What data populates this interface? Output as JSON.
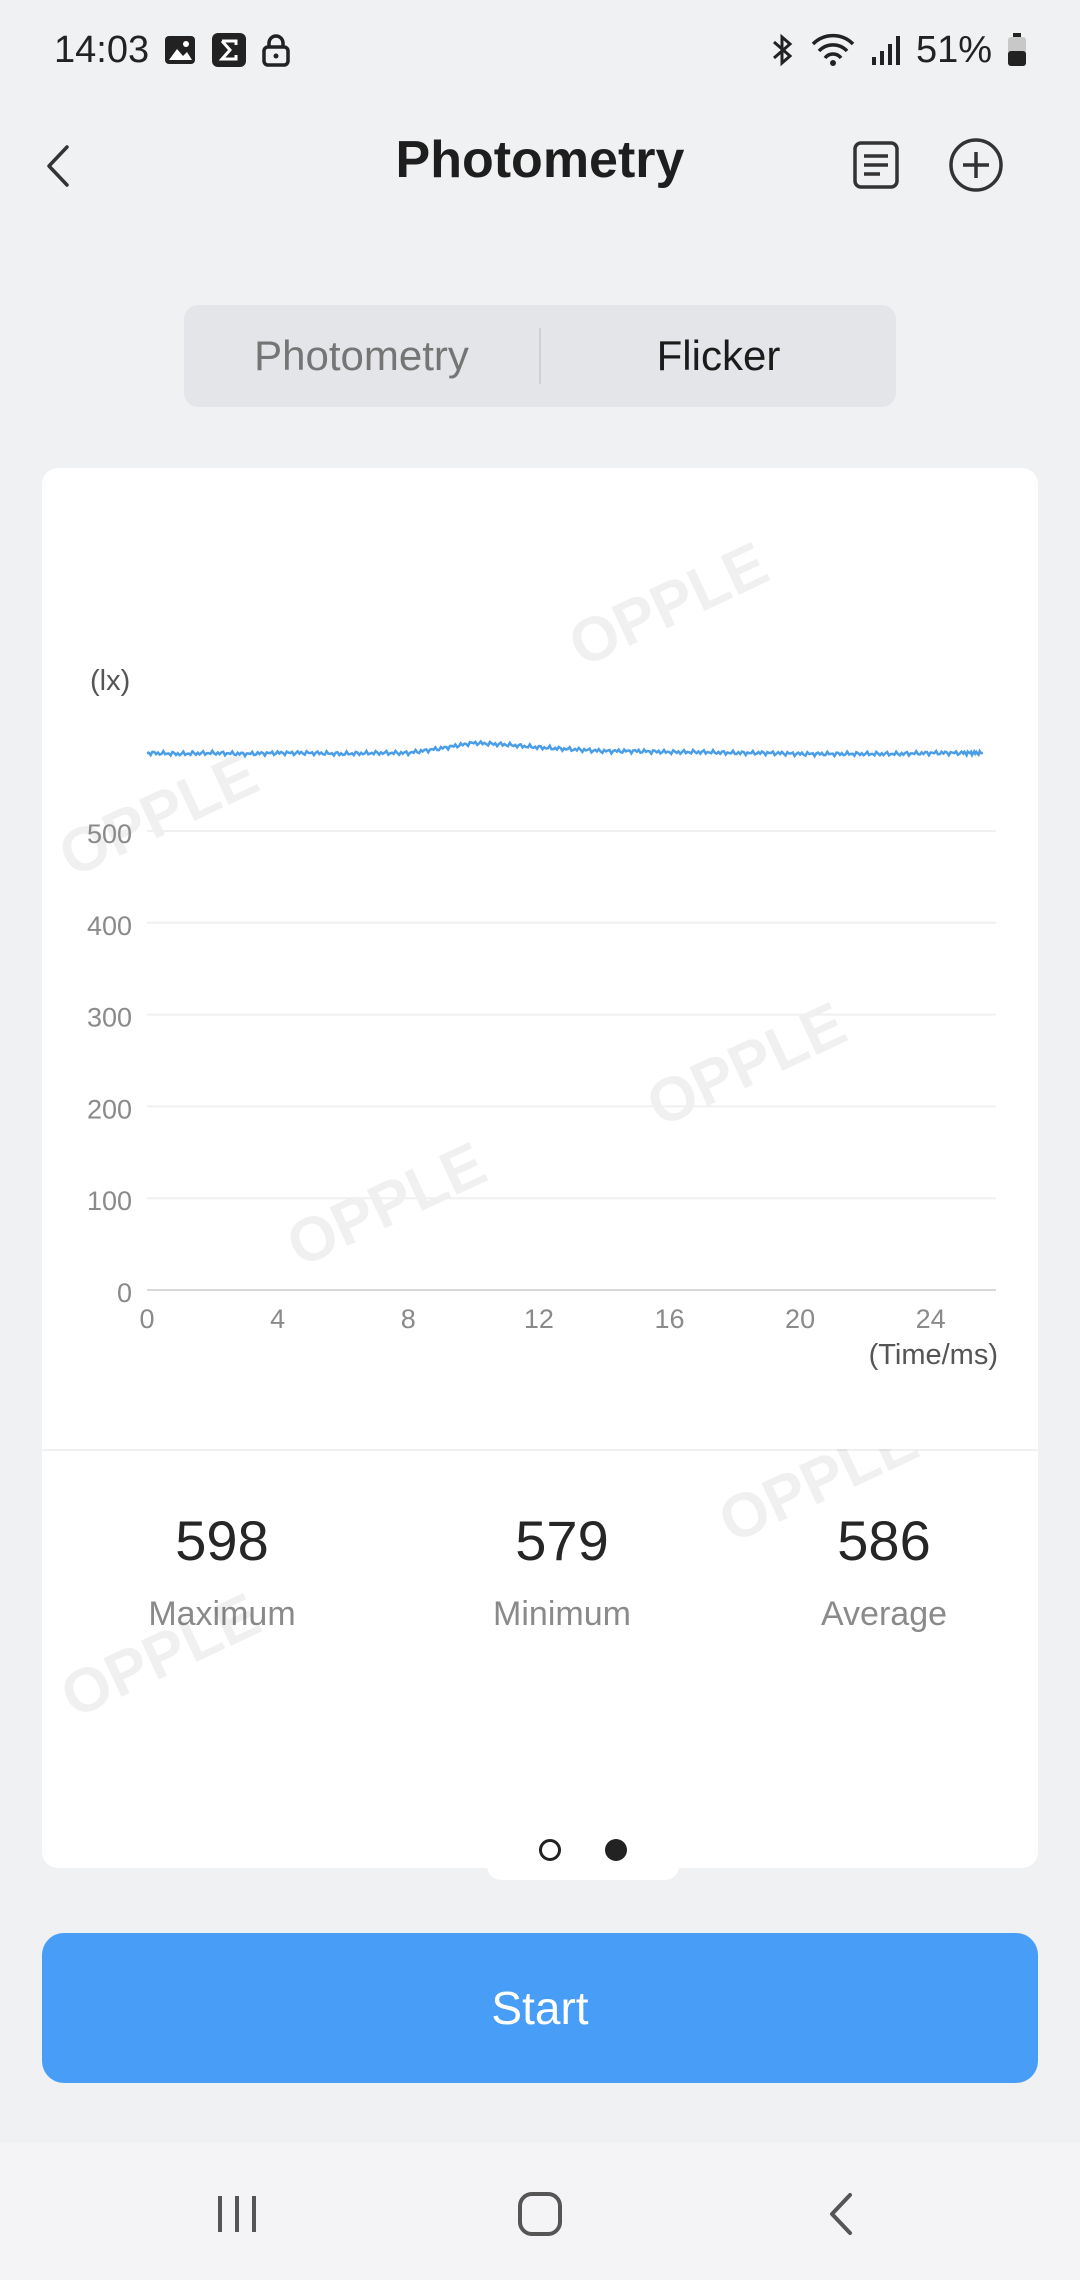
{
  "status_bar": {
    "time": "14:03",
    "battery": "51%",
    "left_icons": [
      "gallery-icon",
      "sigma-icon",
      "lock-icon"
    ],
    "right_icons": [
      "bluetooth-icon",
      "wifi-icon",
      "signal-icon",
      "battery-icon"
    ]
  },
  "app_bar": {
    "title": "Photometry",
    "icons": [
      "back-arrow-icon",
      "list-icon",
      "add-circle-icon"
    ]
  },
  "tabs": [
    {
      "label": "Photometry",
      "active": false
    },
    {
      "label": "Flicker",
      "active": true
    }
  ],
  "chart_data": {
    "type": "line",
    "title": "",
    "xlabel": "(Time/ms)",
    "ylabel": "(lx)",
    "xlim": [
      0,
      26
    ],
    "ylim": [
      0,
      500
    ],
    "x_ticks": [
      0,
      4,
      8,
      12,
      16,
      20,
      24
    ],
    "y_ticks": [
      0,
      100,
      200,
      300,
      400,
      500
    ],
    "grid": true,
    "series": [
      {
        "color": "#4a9ee8",
        "x": [
          0,
          1,
          2,
          3,
          4,
          5,
          6,
          7,
          8,
          9,
          10,
          11,
          12,
          13,
          14,
          15,
          16,
          17,
          18,
          19,
          20,
          21,
          22,
          23,
          24,
          25,
          25.6
        ],
        "y": [
          585,
          584,
          585,
          584,
          585,
          585,
          584,
          585,
          585,
          590,
          596,
          594,
          591,
          589,
          587,
          587,
          586,
          586,
          585,
          585,
          584,
          584,
          584,
          584,
          585,
          585,
          585
        ]
      }
    ]
  },
  "watermark": "OPPLE",
  "stats": [
    {
      "value": "598",
      "label": "Maximum"
    },
    {
      "value": "579",
      "label": "Minimum"
    },
    {
      "value": "586",
      "label": "Average"
    }
  ],
  "pager": {
    "pages": 2,
    "current": 2
  },
  "start_button": {
    "label": "Start",
    "color": "#489ef6"
  },
  "nav_bar": {
    "icons": [
      "recent-apps-icon",
      "home-icon",
      "back-icon"
    ]
  }
}
